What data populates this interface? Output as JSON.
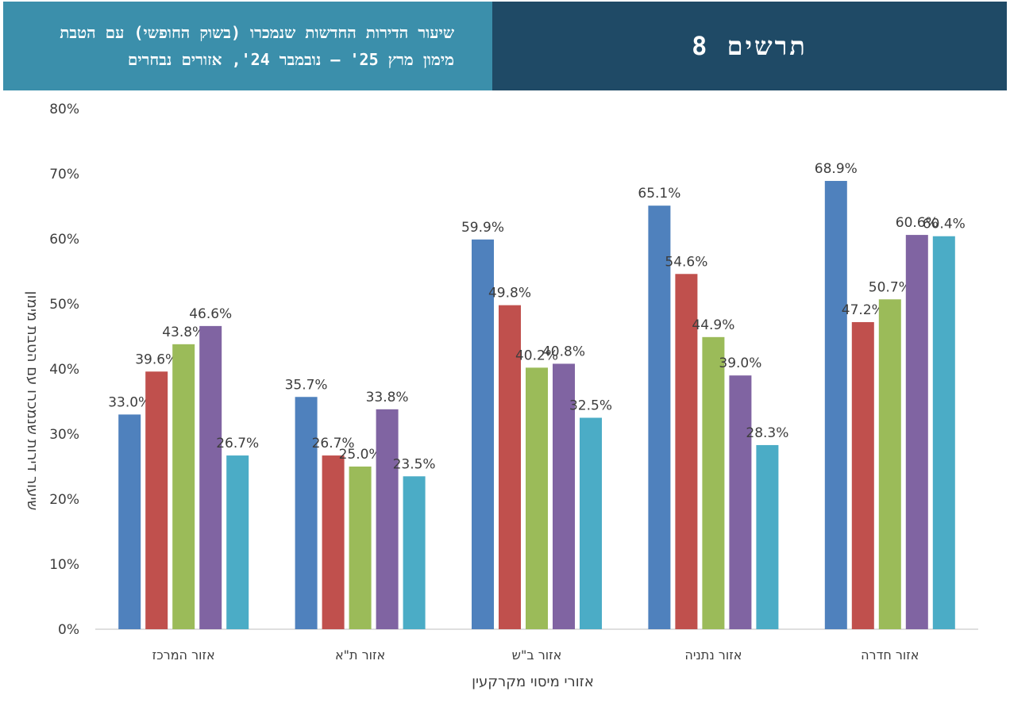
{
  "header": {
    "figure_title": "תרשים 8",
    "subtitle": "שיעור הדירות החדשות שנמכרו (בשוק החופשי) עם הטבת מימון מרץ 25' – נובמבר 24', אזורים נבחרים"
  },
  "colors": {
    "title_bg": "#1f4a66",
    "subtitle_bg": "#3b8fab"
  },
  "chart_data": {
    "type": "bar",
    "title": "",
    "xlabel": "אזורי מיסוי מקרקעין",
    "ylabel": "שיעור דירות שנמכרו עם הטבת מימון",
    "ylim": [
      0,
      80
    ],
    "yticks": [
      "0%",
      "10%",
      "20%",
      "30%",
      "40%",
      "50%",
      "60%",
      "70%",
      "80%"
    ],
    "grid": false,
    "categories": [
      "אזור המרכז",
      "אזור ת\"א",
      "אזור ב\"ש",
      "אזור נתניה",
      "אזור חדרה"
    ],
    "series": [
      {
        "color": "#4f81bd",
        "values": [
          33.0,
          35.7,
          59.9,
          65.1,
          68.9
        ],
        "labels": [
          "33.0%",
          "35.7%",
          "59.9%",
          "65.1%",
          "68.9%"
        ]
      },
      {
        "color": "#c0504d",
        "values": [
          39.6,
          26.7,
          49.8,
          54.6,
          47.2
        ],
        "labels": [
          "39.6%",
          "26.7%",
          "49.8%",
          "54.6%",
          "47.2%"
        ]
      },
      {
        "color": "#9bbb59",
        "values": [
          43.8,
          25.0,
          40.2,
          44.9,
          50.7
        ],
        "labels": [
          "43.8%",
          "25.0%",
          "40.2%",
          "44.9%",
          "50.7%"
        ]
      },
      {
        "color": "#8064a2",
        "values": [
          46.6,
          33.8,
          40.8,
          39.0,
          60.6
        ],
        "labels": [
          "46.6%",
          "33.8%",
          "40.8%",
          "39.0%",
          "60.6%"
        ]
      },
      {
        "color": "#4bacc6",
        "values": [
          26.7,
          23.5,
          32.5,
          28.3,
          60.4
        ],
        "labels": [
          "26.7%",
          "23.5%",
          "32.5%",
          "28.3%",
          "60.4%"
        ]
      }
    ]
  }
}
